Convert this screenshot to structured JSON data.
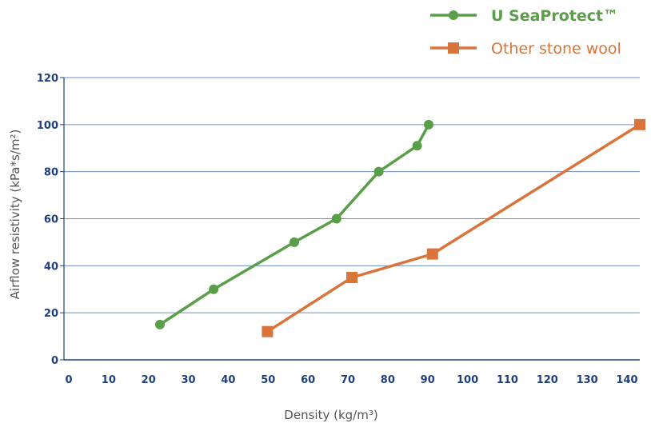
{
  "chart_data": {
    "type": "line",
    "xlabel": "Density (kg/m³)",
    "ylabel": "Airflow resistivity (kPa*s/m²)",
    "xlim": [
      0,
      150
    ],
    "ylim": [
      0,
      120
    ],
    "xticks": [
      "0",
      "10",
      "20",
      "30",
      "40",
      "50",
      "60",
      "70",
      "80",
      "90",
      "100",
      "110",
      "120",
      "130",
      "140"
    ],
    "yticks": [
      "0",
      "20",
      "40",
      "60",
      "80",
      "100",
      "120"
    ],
    "grid": "horizontal",
    "legend_position": "top-right",
    "series": [
      {
        "name": "U SeaProtect™",
        "color": "#5a9e4a",
        "marker": "circle",
        "x": [
          25,
          39,
          60,
          71,
          82,
          92,
          95
        ],
        "y": [
          15,
          30,
          50,
          60,
          80,
          91,
          100
        ]
      },
      {
        "name": "Other stone wool",
        "color": "#d9743a",
        "marker": "square",
        "x": [
          53,
          75,
          96,
          150
        ],
        "y": [
          12,
          35,
          45,
          100
        ]
      }
    ]
  }
}
